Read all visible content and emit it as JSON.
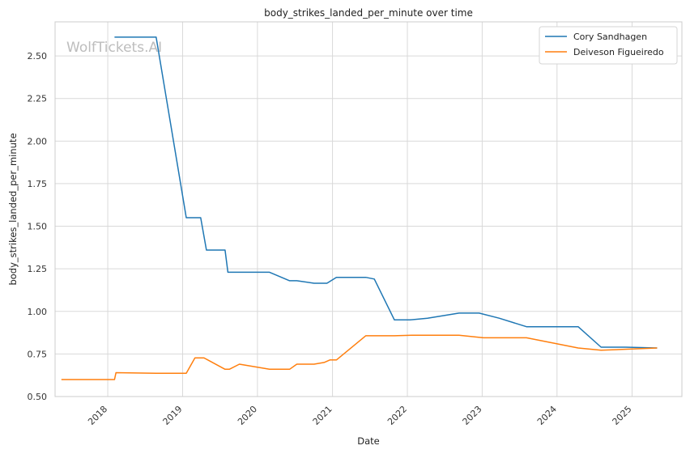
{
  "chart_data": {
    "type": "line",
    "title": "body_strikes_landed_per_minute over time",
    "xlabel": "Date",
    "ylabel": "body_strikes_landed_per_minute",
    "watermark": "WolfTickets.AI",
    "x_range": [
      "2017-04-19",
      "2025-09-01"
    ],
    "ylim": [
      0.5,
      2.7
    ],
    "yticks": [
      "0.50",
      "0.75",
      "1.00",
      "1.25",
      "1.50",
      "1.75",
      "2.00",
      "2.25",
      "2.50"
    ],
    "xticks": [
      "2018",
      "2019",
      "2020",
      "2021",
      "2022",
      "2023",
      "2024",
      "2025"
    ],
    "grid": true,
    "legend_position": "top-right",
    "colors": {
      "Cory Sandhagen": "#1f77b4",
      "Deiveson Figueiredo": "#ff7f0e"
    },
    "series": [
      {
        "name": "Cory Sandhagen",
        "x": [
          "2018-02-03",
          "2018-08-25",
          "2019-01-19",
          "2019-03-30",
          "2019-04-27",
          "2019-07-27",
          "2019-08-10",
          "2020-02-29",
          "2020-06-06",
          "2020-07-11",
          "2020-10-03",
          "2020-12-05",
          "2021-01-20",
          "2021-06-12",
          "2021-07-24",
          "2021-10-30",
          "2022-01-15",
          "2022-04-09",
          "2022-09-10",
          "2022-12-17",
          "2023-03-25",
          "2023-08-05",
          "2023-11-18",
          "2024-04-13",
          "2024-08-03",
          "2024-11-30",
          "2025-05-03"
        ],
        "y": [
          2.61,
          2.61,
          1.55,
          1.55,
          1.36,
          1.36,
          1.23,
          1.23,
          1.18,
          1.18,
          1.165,
          1.165,
          1.2,
          1.2,
          1.19,
          0.95,
          0.95,
          0.96,
          0.99,
          0.99,
          0.96,
          0.91,
          0.91,
          0.91,
          0.79,
          0.79,
          0.785
        ]
      },
      {
        "name": "Deiveson Figueiredo",
        "x": [
          "2017-05-20",
          "2018-02-03",
          "2018-02-10",
          "2018-08-25",
          "2019-01-19",
          "2019-03-02",
          "2019-04-15",
          "2019-07-27",
          "2019-08-17",
          "2019-10-05",
          "2020-02-29",
          "2020-06-06",
          "2020-07-11",
          "2020-10-03",
          "2020-11-21",
          "2020-12-19",
          "2021-01-20",
          "2021-06-12",
          "2021-10-30",
          "2022-01-22",
          "2022-09-10",
          "2023-01-07",
          "2023-08-05",
          "2024-04-13",
          "2024-08-03",
          "2024-12-07",
          "2025-05-03"
        ],
        "y": [
          0.6,
          0.6,
          0.64,
          0.637,
          0.637,
          0.727,
          0.727,
          0.66,
          0.66,
          0.69,
          0.66,
          0.66,
          0.69,
          0.69,
          0.7,
          0.715,
          0.715,
          0.857,
          0.857,
          0.86,
          0.86,
          0.845,
          0.845,
          0.785,
          0.772,
          0.778,
          0.785
        ]
      }
    ]
  }
}
